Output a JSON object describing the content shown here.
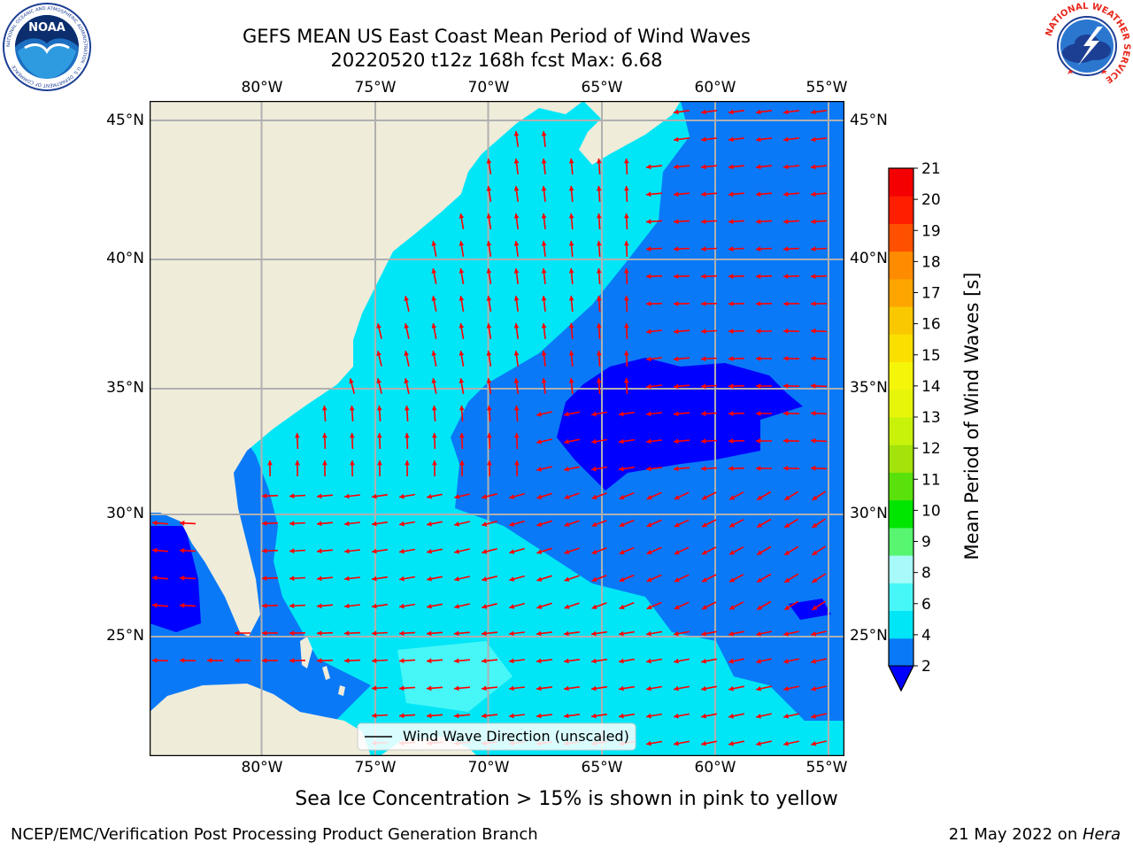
{
  "header": {
    "title_line1": "GEFS MEAN US East Coast Mean Period of Wind Waves",
    "title_line2": "20220520 t12z 168h fcst   Max: 6.68"
  },
  "logos": {
    "left": {
      "text": "NOAA",
      "ring": "NATIONAL OCEANIC AND ATMOSPHERIC ADMINISTRATION · U.S. DEPARTMENT OF COMMERCE"
    },
    "right": {
      "ring": "NATIONAL WEATHER SERVICE"
    }
  },
  "map": {
    "lon_labels": [
      "80°W",
      "75°W",
      "70°W",
      "65°W",
      "60°W",
      "55°W"
    ],
    "lat_labels": [
      "45°N",
      "40°N",
      "35°N",
      "30°N",
      "25°N"
    ],
    "legend_text": "Wind Wave Direction (unscaled)",
    "arrow_color": "#ff0000",
    "land_color": "#efecda",
    "coast_color": "#000000",
    "grid_color": "#b0b0b0"
  },
  "colorbar": {
    "label": "Mean Period of Wind Waves [s]",
    "ticks": [
      "2",
      "4",
      "6",
      "8",
      "9",
      "10",
      "11",
      "12",
      "13",
      "14",
      "15",
      "16",
      "17",
      "18",
      "19",
      "20",
      "21"
    ],
    "colors": [
      "#0a79f7",
      "#00e6f7",
      "#47f7f7",
      "#a8fafa",
      "#57f570",
      "#00e600",
      "#5ae10b",
      "#a3e20b",
      "#c8f20a",
      "#e6f50a",
      "#f5f50a",
      "#fae000",
      "#fac800",
      "#ffa500",
      "#ff8c00",
      "#ff5000",
      "#ff1e00",
      "#f50000"
    ],
    "under_color": "#0000ff"
  },
  "note": "Sea Ice Concentration > 15% is shown in pink to yellow",
  "footer": {
    "left": "NCEP/EMC/Verification Post Processing Product Generation Branch",
    "date": "21 May 2022 on ",
    "machine": "Hera"
  }
}
